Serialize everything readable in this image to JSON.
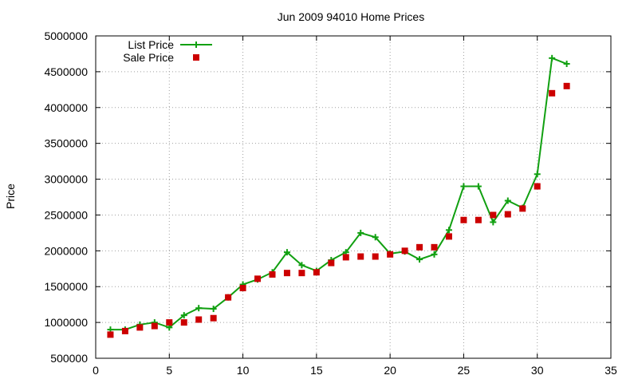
{
  "chart_data": {
    "type": "scatter",
    "title": "Jun 2009 94010 Home Prices",
    "xlabel": "",
    "ylabel": "Price",
    "xlim": [
      0,
      35
    ],
    "ylim": [
      500000,
      5000000
    ],
    "xticks": [
      0,
      5,
      10,
      15,
      20,
      25,
      30,
      35
    ],
    "yticks": [
      500000,
      1000000,
      1500000,
      2000000,
      2500000,
      3000000,
      3500000,
      4000000,
      4500000,
      5000000
    ],
    "grid": true,
    "legend_position": "top-left",
    "series": [
      {
        "name": "List Price",
        "style": "linespoints",
        "color": "#11a011",
        "x": [
          1,
          2,
          3,
          4,
          5,
          6,
          7,
          8,
          9,
          10,
          11,
          12,
          13,
          14,
          15,
          16,
          17,
          18,
          19,
          20,
          21,
          22,
          23,
          24,
          25,
          26,
          27,
          28,
          29,
          30,
          31,
          32
        ],
        "y": [
          900000,
          900000,
          970000,
          1000000,
          930000,
          1100000,
          1200000,
          1190000,
          1350000,
          1530000,
          1600000,
          1700000,
          1980000,
          1800000,
          1720000,
          1870000,
          1980000,
          2250000,
          2190000,
          1960000,
          1990000,
          1880000,
          1950000,
          2290000,
          2900000,
          2900000,
          2400000,
          2700000,
          2600000,
          3070000,
          4690000,
          4610000
        ]
      },
      {
        "name": "Sale Price",
        "style": "points",
        "color": "#cc0000",
        "x": [
          1,
          2,
          3,
          4,
          5,
          6,
          7,
          8,
          9,
          10,
          11,
          12,
          13,
          14,
          15,
          16,
          17,
          18,
          19,
          20,
          21,
          22,
          23,
          24,
          25,
          26,
          27,
          28,
          29,
          30,
          31,
          32
        ],
        "y": [
          830000,
          880000,
          930000,
          950000,
          1000000,
          1000000,
          1040000,
          1060000,
          1350000,
          1480000,
          1610000,
          1670000,
          1690000,
          1690000,
          1700000,
          1830000,
          1910000,
          1920000,
          1920000,
          1950000,
          2000000,
          2050000,
          2050000,
          2200000,
          2430000,
          2430000,
          2500000,
          2510000,
          2590000,
          2900000,
          4200000,
          4300000
        ]
      }
    ]
  }
}
